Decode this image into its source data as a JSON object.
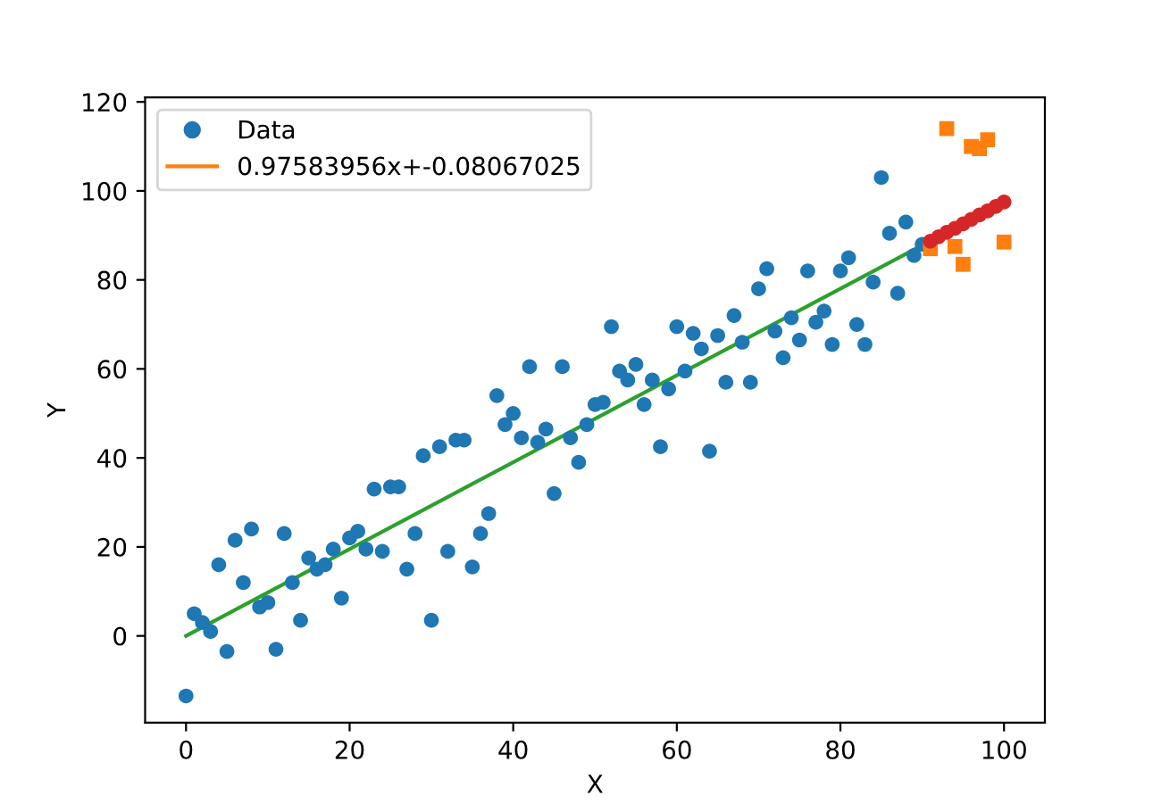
{
  "chart_data": {
    "type": "scatter",
    "xlabel": "X",
    "ylabel": "Y",
    "xlim": [
      -5,
      105
    ],
    "ylim": [
      -19.5,
      121
    ],
    "xticks": [
      0,
      20,
      40,
      60,
      80,
      100
    ],
    "yticks": [
      0,
      20,
      40,
      60,
      80,
      100,
      120
    ],
    "grid": false,
    "legend": "top left",
    "series": [
      {
        "name": "Data",
        "marker": "circle",
        "color": "#1f77b4",
        "x": [
          0,
          1,
          2,
          3,
          4,
          5,
          6,
          7,
          8,
          9,
          10,
          11,
          12,
          13,
          14,
          15,
          16,
          17,
          18,
          19,
          20,
          21,
          22,
          23,
          24,
          25,
          26,
          27,
          28,
          29,
          30,
          31,
          32,
          33,
          34,
          35,
          36,
          37,
          38,
          39,
          40,
          41,
          42,
          43,
          44,
          45,
          46,
          47,
          48,
          49,
          50,
          51,
          52,
          53,
          54,
          55,
          56,
          57,
          58,
          59,
          60,
          61,
          62,
          63,
          64,
          65,
          66,
          67,
          68,
          69,
          70,
          71,
          72,
          73,
          74,
          75,
          76,
          77,
          78,
          79,
          80,
          81,
          82,
          83,
          84,
          85,
          86,
          87,
          88,
          89,
          90
        ],
        "values": [
          -13.5,
          5,
          3,
          1,
          16,
          -3.5,
          21.5,
          12,
          24,
          6.5,
          7.5,
          -3,
          23,
          12,
          3.5,
          17.5,
          15,
          16,
          19.5,
          8.5,
          22,
          23.5,
          19.5,
          33,
          19,
          33.5,
          33.5,
          15,
          23,
          40.5,
          3.5,
          42.5,
          19,
          44,
          44,
          15.5,
          23,
          27.5,
          54,
          47.5,
          50,
          44.5,
          60.5,
          43.5,
          46.5,
          32,
          60.5,
          44.5,
          39,
          47.5,
          52,
          52.5,
          69.5,
          59.5,
          57.5,
          61,
          52,
          57.5,
          42.5,
          55.5,
          69.5,
          59.5,
          68,
          64.5,
          41.5,
          67.5,
          57,
          72,
          66,
          57,
          78,
          82.5,
          68.5,
          62.5,
          71.5,
          66.5,
          82,
          70.5,
          73,
          65.5,
          82,
          85,
          70,
          65.5,
          79.5,
          103,
          90.5,
          77,
          93,
          85.5,
          88
        ]
      },
      {
        "name": "0.97583956x+-0.08067025",
        "marker": "square",
        "color": "#ff7f0e",
        "x": [
          91,
          93,
          94,
          95,
          96,
          97,
          98,
          100
        ],
        "values": [
          87,
          114,
          87.5,
          83.5,
          110,
          109.5,
          111.5,
          88.5
        ]
      },
      {
        "type": "line",
        "marker": "none",
        "color": "#2ca02c",
        "x": [
          0,
          90
        ],
        "values": [
          0,
          87.8
        ]
      },
      {
        "marker": "circle",
        "color": "#d62728",
        "x": [
          91,
          92,
          93,
          94,
          95,
          96,
          97,
          98,
          99,
          100
        ],
        "values": [
          88.7,
          89.7,
          90.7,
          91.6,
          92.6,
          93.6,
          94.6,
          95.5,
          96.5,
          97.5
        ]
      }
    ]
  }
}
